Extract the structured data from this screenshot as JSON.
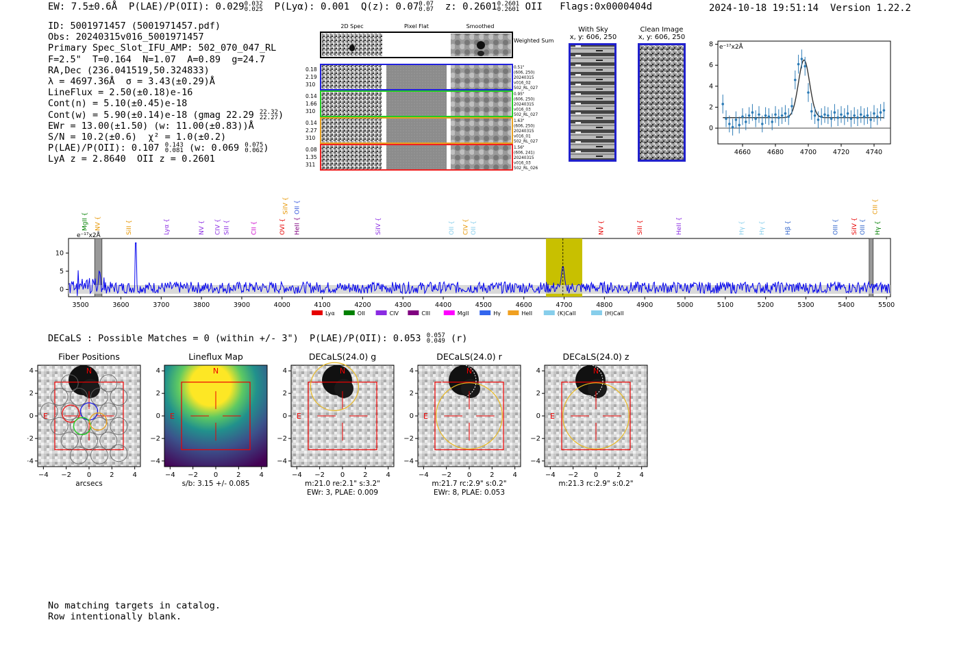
{
  "header": {
    "ew": "EW: 7.5±0.6Å",
    "plae": "P(LAE)/P(OII): 0.029",
    "plae_hi": "0.032",
    "plae_lo": "0.025",
    "plya": "P(Lyα): 0.001",
    "qz": "Q(z): 0.07",
    "qz_hi": "0.07",
    "qz_lo": "0.07",
    "z": "z: 0.2601",
    "z_hi": "0.2601",
    "z_lo": "0.2601",
    "z_line": "OII",
    "flags": "Flags:0x0000404d",
    "timestamp": "2024-10-18 19:51:14",
    "version": "Version 1.22.2"
  },
  "info": {
    "id": "ID: 5001971457 (5001971457.pdf)",
    "obs": "Obs: 20240315v016_5001971457",
    "primary": "Primary Spec_Slot_IFU_AMP: 502_070_047_RL",
    "params": "F=2.5\"  T=0.164  N=1.07  A=0.89  g=24.7",
    "radec": "RA,Dec (236.041519,50.324833)",
    "lambda": "λ = 4697.36Å  σ = 3.43(±0.29)Å",
    "lineflux": "LineFlux = 2.50(±0.18)e-16",
    "contn": "Cont(n) = 5.10(±0.45)e-18",
    "contw": "Cont(w) = 5.90(±0.14)e-18 (gmag 22.29",
    "contw_hi": "22.32",
    "contw_lo": "22.27",
    "ewr": "EWr = 13.00(±1.50) (w: 11.00(±0.83))Å",
    "sn": "S/N = 10.2(±0.6)  χ² = 1.0(±0.2)",
    "plae2": "P(LAE)/P(OII): 0.107",
    "plae2_hi": "0.143",
    "plae2_lo": "0.081",
    "plae2_w": "(w: 0.069",
    "plae2_w_hi": "0.075",
    "plae2_w_lo": "0.062",
    "lyaz": "LyA z = 2.8640  OII z = 0.2601"
  },
  "cutouts": {
    "col_titles": [
      "2D Spec",
      "Pixel Flat",
      "Smoothed"
    ],
    "weighted": "Weighted Sum",
    "rows": [
      {
        "left": [
          "0.18",
          "2.19",
          "310"
        ],
        "right": [
          "0.51\"",
          "(606, 250)",
          "20240315",
          "v016_02",
          "502_RL_027"
        ],
        "color": "#2020dd"
      },
      {
        "left": [
          "0.14",
          "1.66",
          "310"
        ],
        "right": [
          "0.95\"",
          "(606, 250)",
          "20240315",
          "v016_03",
          "502_RL_027"
        ],
        "color": "#22cc22"
      },
      {
        "left": [
          "0.14",
          "2.27",
          "310"
        ],
        "right": [
          "1.63\"",
          "(606, 250)",
          "20240315",
          "v016_01",
          "502_RL_027"
        ],
        "color": "#e8a020"
      },
      {
        "left": [
          "0.08",
          "1.35",
          "311"
        ],
        "right": [
          "1.56\"",
          "(606, 241)",
          "20240315",
          "v016_03",
          "502_RL_026"
        ],
        "color": "#ee2020"
      }
    ],
    "with_sky_title": "With Sky",
    "with_sky_coords": "x, y: 606, 250",
    "clean_title": "Clean Image",
    "clean_coords": "x, y: 606, 250"
  },
  "zoom_chart": {
    "type": "scatter",
    "unit_label": "e⁻¹⁷x2Å",
    "x": [
      4648,
      4650,
      4652,
      4654,
      4656,
      4658,
      4660,
      4662,
      4664,
      4666,
      4668,
      4670,
      4672,
      4674,
      4676,
      4678,
      4680,
      4682,
      4684,
      4686,
      4688,
      4690,
      4692,
      4694,
      4696,
      4698,
      4700,
      4702,
      4704,
      4706,
      4708,
      4710,
      4712,
      4714,
      4716,
      4718,
      4720,
      4722,
      4724,
      4726,
      4728,
      4730,
      4732,
      4734,
      4736,
      4738,
      4740,
      4742,
      4744,
      4746
    ],
    "y": [
      2.3,
      0.9,
      0.4,
      0.1,
      0.8,
      0.3,
      1.1,
      0.6,
      1.2,
      1.5,
      0.9,
      1.3,
      0.4,
      1.2,
      1.1,
      0.6,
      1.3,
      1.0,
      1.2,
      1.4,
      1.1,
      2.1,
      4.6,
      6.1,
      6.6,
      5.9,
      3.4,
      1.6,
      1.2,
      0.8,
      1.1,
      1.3,
      1.2,
      0.9,
      1.5,
      1.0,
      1.3,
      1.1,
      1.4,
      0.9,
      1.2,
      1.0,
      1.3,
      1.1,
      1.2,
      0.8,
      1.4,
      1.1,
      1.5,
      1.7
    ],
    "err": [
      0.9,
      0.8,
      0.8,
      0.8,
      0.8,
      0.8,
      0.8,
      0.8,
      0.8,
      0.8,
      0.8,
      0.8,
      0.8,
      0.8,
      0.8,
      0.8,
      0.8,
      0.8,
      0.8,
      0.8,
      0.8,
      0.8,
      0.9,
      0.9,
      0.9,
      0.9,
      0.9,
      0.8,
      0.8,
      0.8,
      0.8,
      0.8,
      0.8,
      0.8,
      0.8,
      0.8,
      0.8,
      0.8,
      0.8,
      0.8,
      0.8,
      0.8,
      0.8,
      0.8,
      0.8,
      0.8,
      0.8,
      0.8,
      0.8,
      0.8
    ],
    "fit_center": 4697.4,
    "fit_sigma": 3.4,
    "fit_amp": 5.5,
    "fit_cont": 1.0,
    "xlim": [
      4645,
      4750
    ],
    "ylim": [
      -1.5,
      8.3
    ],
    "xticks": [
      4660,
      4680,
      4700,
      4720,
      4740
    ],
    "yticks": [
      0,
      2,
      4,
      6,
      8
    ]
  },
  "spectrum": {
    "type": "line",
    "unit_label": "e⁻¹⁷x2Å",
    "xlim": [
      3470,
      5510
    ],
    "ylim": [
      -2,
      14
    ],
    "xticks": [
      3500,
      3600,
      3700,
      3800,
      3900,
      4000,
      4100,
      4200,
      4300,
      4400,
      4500,
      4600,
      4700,
      4800,
      4900,
      5000,
      5100,
      5200,
      5300,
      5400,
      5500
    ],
    "yticks": [
      0,
      5,
      10
    ],
    "highlight": [
      4655,
      4745
    ],
    "line_center": 4697,
    "masked": [
      [
        3535,
        3553
      ],
      [
        5457,
        5467
      ]
    ],
    "spike_x": 3637,
    "spike_y": 12.8,
    "lines": [
      {
        "name": "MgII",
        "x": 3510,
        "color": "#008000",
        "row": 2
      },
      {
        "name": "NV",
        "x": 3542,
        "color": "#e69500",
        "row": 2
      },
      {
        "name": "SiII",
        "x": 3620,
        "color": "#e69500",
        "row": 1
      },
      {
        "name": "Lyα",
        "x": 3713,
        "color": "#8a2be2",
        "row": 1
      },
      {
        "name": "NV",
        "x": 3800,
        "color": "#8a2be2",
        "row": 1
      },
      {
        "name": "CIV",
        "x": 3840,
        "color": "#8a2be2",
        "row": 1
      },
      {
        "name": "SiII",
        "x": 3862,
        "color": "#8a2be2",
        "row": 1
      },
      {
        "name": "CII",
        "x": 3930,
        "color": "#cc00cc",
        "row": 1
      },
      {
        "name": "OVI",
        "x": 4000,
        "color": "#e60000",
        "row": 1
      },
      {
        "name": "HeII",
        "x": 4037,
        "color": "#800080",
        "row": 1
      },
      {
        "name": "SiIV",
        "x": 4008,
        "color": "#e69500",
        "row": 0
      },
      {
        "name": "OII",
        "x": 4037,
        "color": "#3355dd",
        "row": 0
      },
      {
        "name": "SiIV",
        "x": 4238,
        "color": "#8a2be2",
        "row": 1
      },
      {
        "name": "OII",
        "x": 4420,
        "color": "#87ceeb",
        "row": 1
      },
      {
        "name": "CIV",
        "x": 4455,
        "color": "#e69500",
        "row": 1
      },
      {
        "name": "OII",
        "x": 4475,
        "color": "#87ceeb",
        "row": 1
      },
      {
        "name": "NV",
        "x": 4792,
        "color": "#e60000",
        "row": 1
      },
      {
        "name": "SiII",
        "x": 4888,
        "color": "#e60000",
        "row": 1
      },
      {
        "name": "HeII",
        "x": 4985,
        "color": "#8a2be2",
        "row": 1
      },
      {
        "name": "Hγ",
        "x": 5140,
        "color": "#87ceeb",
        "row": 1
      },
      {
        "name": "Hγ",
        "x": 5190,
        "color": "#87ceeb",
        "row": 1
      },
      {
        "name": "Hβ",
        "x": 5255,
        "color": "#3366cc",
        "row": 1
      },
      {
        "name": "OIII",
        "x": 5373,
        "color": "#3366cc",
        "row": 1
      },
      {
        "name": "SiIV",
        "x": 5420,
        "color": "#e60000",
        "row": 1
      },
      {
        "name": "OIII",
        "x": 5440,
        "color": "#3366cc",
        "row": 1
      },
      {
        "name": "CIII",
        "x": 5472,
        "color": "#e69500",
        "row": 0
      },
      {
        "name": "Hγ",
        "x": 5478,
        "color": "#008000",
        "row": 1
      }
    ],
    "legend": [
      {
        "label": "Lyα",
        "color": "#e60000"
      },
      {
        "label": "OII",
        "color": "#008000"
      },
      {
        "label": "CIV",
        "color": "#8a2be2"
      },
      {
        "label": "CIII",
        "color": "#800080"
      },
      {
        "label": "MgII",
        "color": "#ff00ff"
      },
      {
        "label": "Hγ",
        "color": "#3366ee"
      },
      {
        "label": "HeII",
        "color": "#f0a020"
      },
      {
        "label": "(K)CaII",
        "color": "#87ceeb"
      },
      {
        "label": "(H)CaII",
        "color": "#87ceeb"
      }
    ]
  },
  "decals": {
    "summary": "DECaLS : Possible Matches = 0 (within +/- 3\")  P(LAE)/P(OII): 0.053",
    "summary_hi": "0.057",
    "summary_lo": "0.049",
    "summary_band": "(r)",
    "panels": [
      {
        "title": "Fiber Positions",
        "caption1": "arcsecs",
        "caption2": ""
      },
      {
        "title": "Lineflux Map",
        "caption1": "s/b: 3.15 +/- 0.085",
        "caption2": ""
      },
      {
        "title": "DECaLS(24.0) g",
        "caption1": "m:21.0  re:2.1\"  s:3.2\"",
        "caption2": "EWr: 3, PLAE: 0.009"
      },
      {
        "title": "DECaLS(24.0) r",
        "caption1": "m:21.7 rc:2.9\"  s:0.2\"",
        "caption2": "EWr: 8, PLAE: 0.053"
      },
      {
        "title": "DECaLS(24.0) z",
        "caption1": "m:21.3 rc:2.9\"  s:0.2\"",
        "caption2": ""
      }
    ],
    "ticks": [
      -4,
      -2,
      0,
      2,
      4
    ],
    "north": "N",
    "east": "E"
  },
  "footer": {
    "line1": "No matching targets in catalog.",
    "line2": "Row intentionally blank."
  }
}
